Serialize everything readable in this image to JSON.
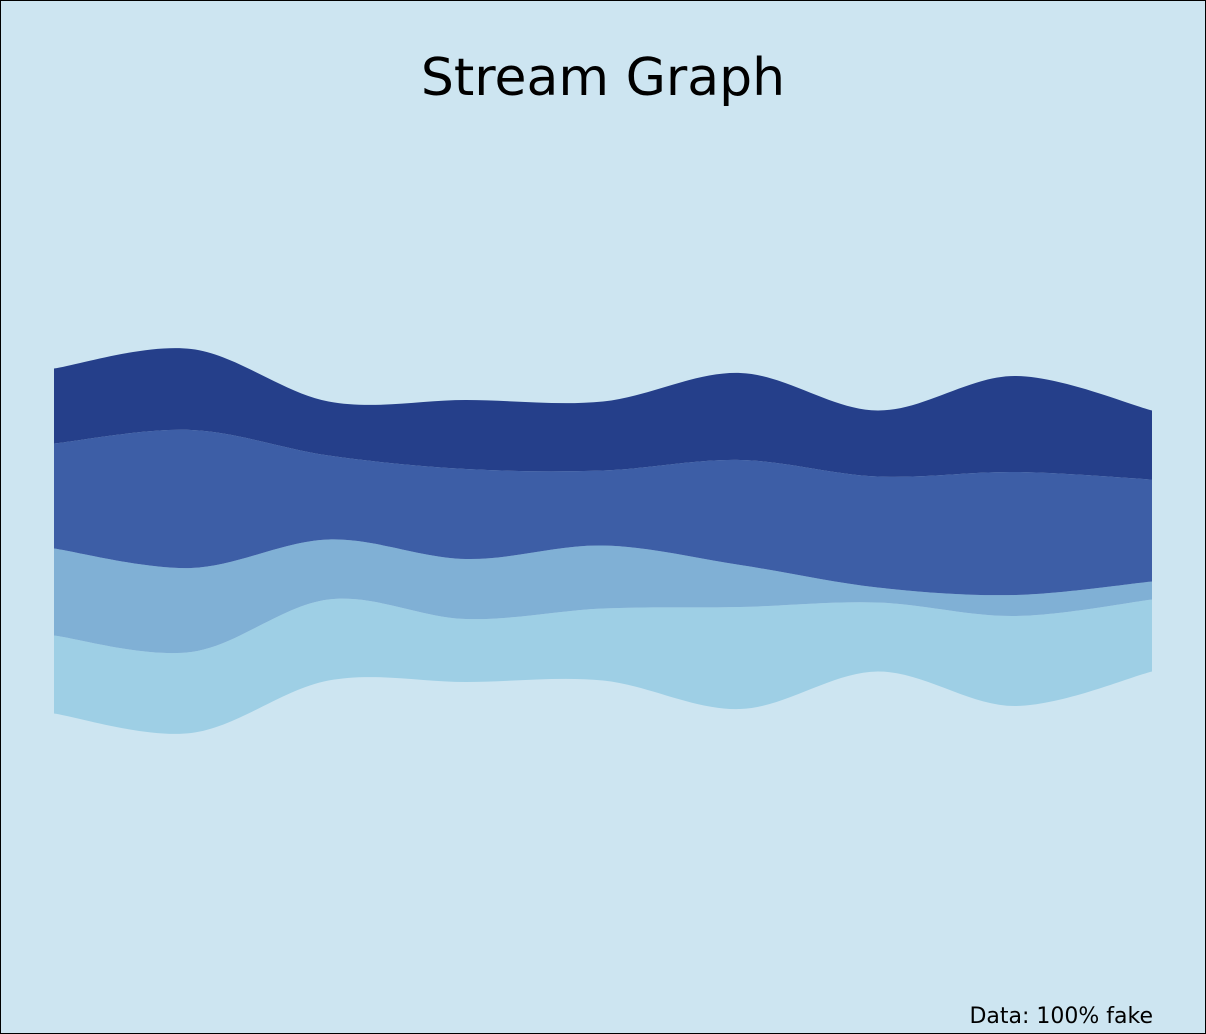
{
  "chart_data": {
    "type": "area",
    "subtype": "streamgraph",
    "title": "Stream Graph",
    "caption": "Data: 100% fake",
    "x": [
      0,
      1,
      2,
      3,
      4,
      5,
      6,
      7,
      8
    ],
    "baseline": "symmetric",
    "series": [
      {
        "values": [
          2.6,
          2.7,
          2.7,
          2.1,
          2.4,
          3.4,
          2.3,
          3.0,
          2.4
        ],
        "color": "#9ecfe5"
      },
      {
        "values": [
          2.9,
          2.8,
          2.0,
          2.0,
          2.1,
          1.4,
          0.5,
          0.7,
          0.6
        ],
        "color": "#80b0d5"
      },
      {
        "values": [
          3.5,
          4.6,
          2.8,
          3.0,
          2.5,
          3.5,
          3.7,
          4.1,
          3.4
        ],
        "color": "#3d5ea6"
      },
      {
        "values": [
          2.5,
          2.7,
          1.8,
          2.3,
          2.3,
          2.9,
          2.2,
          3.2,
          2.3
        ],
        "color": "#253f8a"
      }
    ],
    "xaxis": "none",
    "yaxis": "none",
    "grid": false,
    "legend": "none",
    "background": "#cde5f1"
  }
}
